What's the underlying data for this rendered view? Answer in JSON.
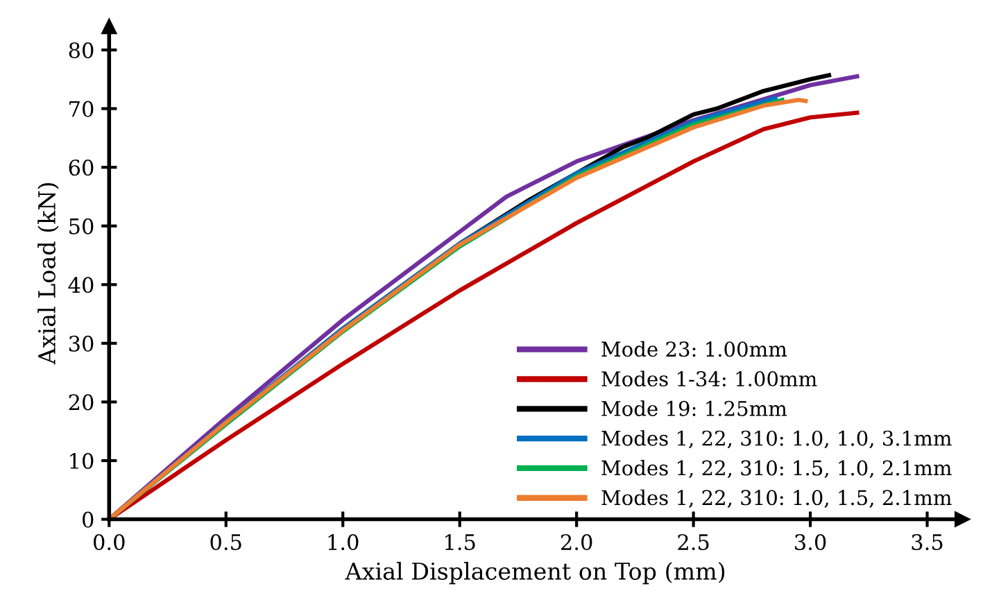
{
  "chart_data": {
    "type": "line",
    "xlabel": "Axial Displacement on Top (mm)",
    "ylabel": "Axial Load (kN)",
    "xlim": [
      0,
      3.65
    ],
    "ylim": [
      0,
      84
    ],
    "xticks": [
      {
        "value": 0,
        "label": "0.0"
      },
      {
        "value": 0.5,
        "label": "0.5"
      },
      {
        "value": 1,
        "label": "1.0"
      },
      {
        "value": 1.5,
        "label": "1.5"
      },
      {
        "value": 2,
        "label": "2.0"
      },
      {
        "value": 2.5,
        "label": "2.5"
      },
      {
        "value": 3,
        "label": "3.0"
      },
      {
        "value": 3.5,
        "label": "3.5"
      }
    ],
    "yticks": [
      0,
      10,
      20,
      30,
      40,
      50,
      60,
      70,
      80
    ],
    "grid": false,
    "legend": "bottom right",
    "marker": "none",
    "line_style": "solid",
    "series": [
      {
        "name": "Mode 23: 1.00mm",
        "color": "#7030a0",
        "x": [
          0,
          0.5,
          1.0,
          1.5,
          1.7,
          2.0,
          2.5,
          3.0,
          3.2
        ],
        "values": [
          0,
          17.3,
          34,
          49,
          55,
          61,
          68,
          74,
          75.5
        ]
      },
      {
        "name": "Modes 1-34: 1.00mm",
        "color": "#c00000",
        "x": [
          0,
          0.5,
          1.0,
          1.5,
          2.0,
          2.5,
          2.8,
          3.0,
          3.2
        ],
        "values": [
          0,
          13.5,
          26.5,
          39,
          50.5,
          61,
          66.5,
          68.5,
          69.3
        ]
      },
      {
        "name": "Mode 19: 1.25mm",
        "color": "#000000",
        "x": [
          0,
          0.5,
          1.0,
          1.5,
          1.8,
          2.0,
          2.2,
          2.3,
          2.5,
          2.6,
          2.8,
          3.0,
          3.08
        ],
        "values": [
          0,
          16.5,
          32.5,
          47,
          54.5,
          59,
          63.5,
          65,
          69,
          70,
          73,
          75,
          75.7
        ]
      },
      {
        "name": "Modes 1, 22, 310: 1.0, 1.0, 3.1mm",
        "color": "#0070c0",
        "x": [
          0,
          0.5,
          1.0,
          1.5,
          2.0,
          2.5,
          2.85
        ],
        "values": [
          0,
          16.6,
          32.5,
          47,
          59,
          67.8,
          71.8
        ]
      },
      {
        "name": "Modes 1, 22, 310: 1.5, 1.0, 2.1mm",
        "color": "#00b050",
        "x": [
          0,
          0.5,
          1.0,
          1.5,
          2.0,
          2.5,
          2.88
        ],
        "values": [
          0,
          16.2,
          32,
          46.5,
          58.5,
          67.3,
          71.5
        ]
      },
      {
        "name": "Modes 1, 22, 310: 1.0, 1.5, 2.1mm",
        "color": "#ed7d31",
        "x": [
          0,
          0.5,
          1.0,
          1.5,
          2.0,
          2.5,
          2.8,
          2.95,
          2.98
        ],
        "values": [
          0,
          16.5,
          32.2,
          46.8,
          58.2,
          66.8,
          70.5,
          71.5,
          71.3
        ]
      }
    ]
  }
}
